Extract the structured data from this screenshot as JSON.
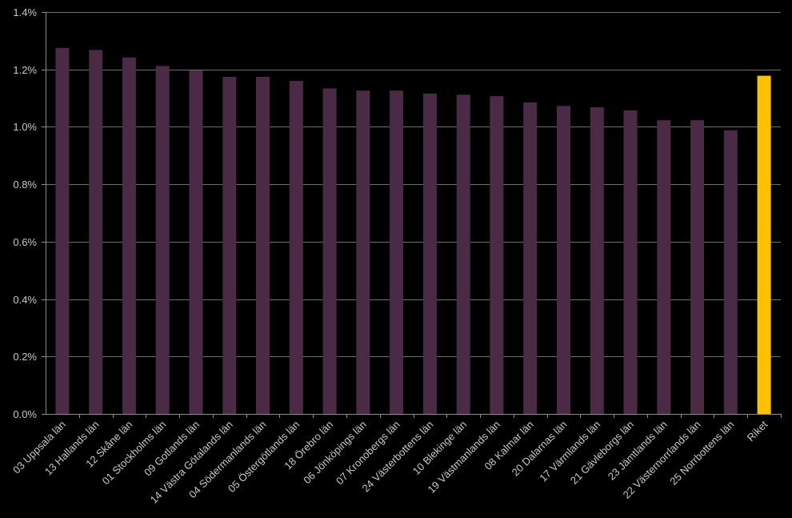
{
  "chart_data": {
    "type": "bar",
    "title": "",
    "xlabel": "",
    "ylabel": "",
    "ylim": [
      0,
      0.014
    ],
    "yticks": [
      0,
      0.002,
      0.004,
      0.006,
      0.008,
      0.01,
      0.012,
      0.014
    ],
    "ytick_labels": [
      "0.0%",
      "0.2%",
      "0.4%",
      "0.6%",
      "0.8%",
      "1.0%",
      "1.2%",
      "1.4%"
    ],
    "grid": true,
    "legend": "none",
    "bar_color": "#4b2a45",
    "highlight_color": "#ffc000",
    "background": "#000000",
    "categories": [
      "03 Uppsala län",
      "13 Hallands län",
      "12 Skåne län",
      "01 Stockholms län",
      "09 Gotlands län",
      "14 Västra Götalands län",
      "04 Södermanlands län",
      "05 Östergötlands län",
      "18 Örebro län",
      "06 Jönköpings län",
      "07 Kronobergs län",
      "24 Västerbottens län",
      "10 Blekinge län",
      "19 Västmanlands län",
      "08 Kalmar län",
      "20 Dalarnas län",
      "17 Värmlands län",
      "21 Gävleborgs län",
      "23 Jämtlands län",
      "22 Västernorrlands län",
      "25 Norrbottens län",
      "Riket"
    ],
    "values": [
      0.01275,
      0.01268,
      0.01242,
      0.01212,
      0.01196,
      0.01174,
      0.01174,
      0.0116,
      0.01134,
      0.01126,
      0.01126,
      0.01116,
      0.01112,
      0.01107,
      0.01085,
      0.01073,
      0.01068,
      0.01057,
      0.01023,
      0.01023,
      0.00988,
      0.01178
    ],
    "highlight": [
      "Riket"
    ]
  }
}
